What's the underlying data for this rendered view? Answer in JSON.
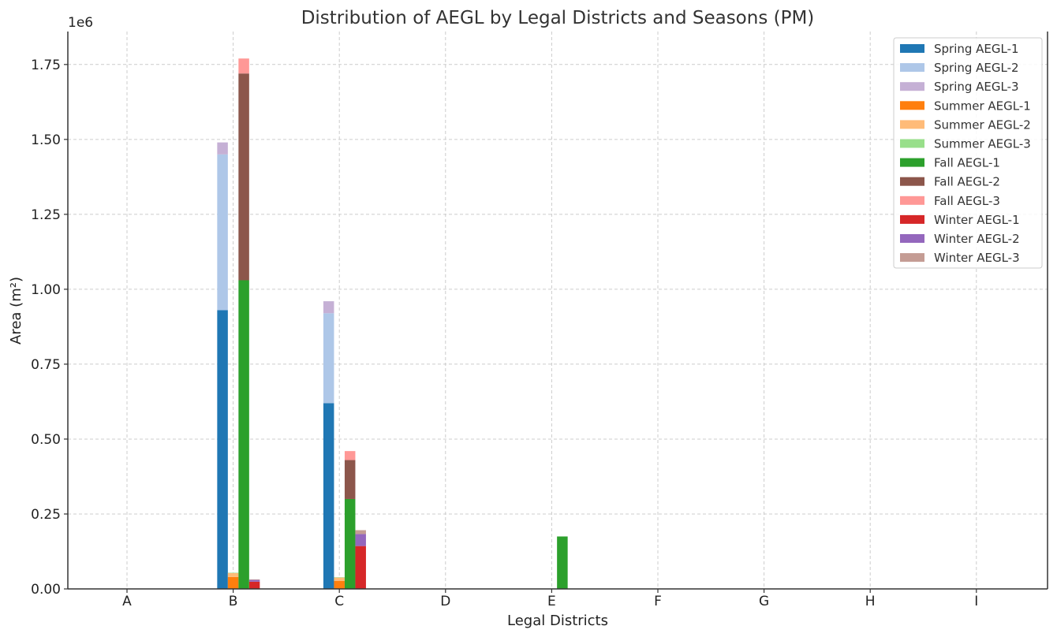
{
  "chart_data": {
    "type": "bar",
    "title": "Distribution of AEGL by Legal Districts and Seasons (PM)",
    "xlabel": "Legal Districts",
    "ylabel": "Area (m²)",
    "y_scale_label": "1e6",
    "ylim": [
      0,
      1.86
    ],
    "yticks": [
      "0.00",
      "0.25",
      "0.50",
      "0.75",
      "1.00",
      "1.25",
      "1.50",
      "1.75"
    ],
    "grid": true,
    "legend_position": "top-right",
    "categories": [
      "A",
      "B",
      "C",
      "D",
      "E",
      "F",
      "G",
      "H",
      "I"
    ],
    "series": [
      {
        "name": "Spring AEGL-1",
        "color": "#1f77b4",
        "values": [
          0,
          0.93,
          0.62,
          0,
          0,
          0,
          0,
          0,
          0
        ]
      },
      {
        "name": "Spring AEGL-2",
        "color": "#aec7e8",
        "values": [
          0,
          0.52,
          0.3,
          0,
          0,
          0,
          0,
          0,
          0
        ]
      },
      {
        "name": "Spring AEGL-3",
        "color": "#c5b0d5",
        "values": [
          0,
          0.04,
          0.04,
          0,
          0,
          0,
          0,
          0,
          0
        ]
      },
      {
        "name": "Summer AEGL-1",
        "color": "#ff7f0e",
        "values": [
          0,
          0.04,
          0.027,
          0,
          0,
          0,
          0,
          0,
          0
        ]
      },
      {
        "name": "Summer AEGL-2",
        "color": "#ffbb78",
        "values": [
          0,
          0.013,
          0.011,
          0,
          0,
          0,
          0,
          0,
          0
        ]
      },
      {
        "name": "Summer AEGL-3",
        "color": "#98df8a",
        "values": [
          0,
          0.001,
          0.001,
          0,
          0,
          0,
          0,
          0,
          0
        ]
      },
      {
        "name": "Fall AEGL-1",
        "color": "#2ca02c",
        "values": [
          0,
          1.03,
          0.3,
          0,
          0.175,
          0,
          0,
          0,
          0
        ]
      },
      {
        "name": "Fall AEGL-2",
        "color": "#8c564b",
        "values": [
          0,
          0.69,
          0.13,
          0,
          0,
          0,
          0,
          0,
          0
        ]
      },
      {
        "name": "Fall AEGL-3",
        "color": "#ff9896",
        "values": [
          0,
          0.05,
          0.03,
          0,
          0,
          0,
          0,
          0,
          0
        ]
      },
      {
        "name": "Winter AEGL-1",
        "color": "#d62728",
        "values": [
          0,
          0.024,
          0.143,
          0,
          0,
          0,
          0,
          0,
          0
        ]
      },
      {
        "name": "Winter AEGL-2",
        "color": "#9467bd",
        "values": [
          0,
          0.006,
          0.04,
          0,
          0,
          0,
          0,
          0,
          0
        ]
      },
      {
        "name": "Winter AEGL-3",
        "color": "#c49c94",
        "values": [
          0,
          0.002,
          0.013,
          0,
          0,
          0,
          0,
          0,
          0
        ]
      }
    ],
    "stack_groups": [
      {
        "season": "Spring",
        "series": [
          0,
          1,
          2
        ]
      },
      {
        "season": "Summer",
        "series": [
          3,
          4,
          5
        ]
      },
      {
        "season": "Fall",
        "series": [
          6,
          7,
          8
        ]
      },
      {
        "season": "Winter",
        "series": [
          9,
          10,
          11
        ]
      }
    ]
  }
}
